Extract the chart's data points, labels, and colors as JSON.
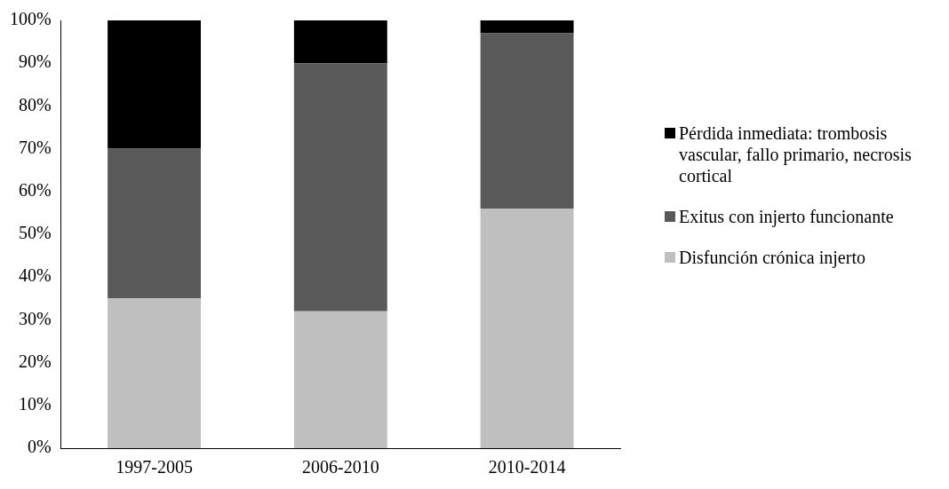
{
  "chart_data": {
    "type": "bar",
    "stacked": true,
    "categories": [
      "1997-2005",
      "2006-2010",
      "2010-2014"
    ],
    "series": [
      {
        "name": "Disfunción crónica injerto",
        "color": "#bfbfbf",
        "values": [
          35,
          32,
          56
        ]
      },
      {
        "name": "Exitus con injerto funcionante",
        "color": "#595959",
        "values": [
          35,
          58,
          41
        ]
      },
      {
        "name": "Pérdida inmediata: trombosis vascular, fallo primario, necrosis cortical",
        "color": "#000000",
        "values": [
          30,
          10,
          3
        ]
      }
    ],
    "ylim": [
      0,
      100
    ],
    "yticks": [
      {
        "value": 0,
        "label": "0%"
      },
      {
        "value": 10,
        "label": "10%"
      },
      {
        "value": 20,
        "label": "20%"
      },
      {
        "value": 30,
        "label": "30%"
      },
      {
        "value": 40,
        "label": "40%"
      },
      {
        "value": 50,
        "label": "50%"
      },
      {
        "value": 60,
        "label": "60%"
      },
      {
        "value": 70,
        "label": "70%"
      },
      {
        "value": 80,
        "label": "80%"
      },
      {
        "value": 90,
        "label": "90%"
      },
      {
        "value": 100,
        "label": "100%"
      }
    ],
    "grid": false,
    "legend": "right"
  }
}
